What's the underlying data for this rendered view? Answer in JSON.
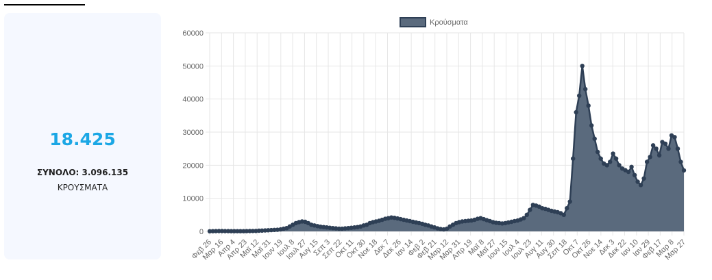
{
  "summary": {
    "value": "18.425",
    "total": "ΣΥΝΟΛΟ: 3.096.135",
    "caption": "ΚΡΟΥΣΜΑΤΑ"
  },
  "colors": {
    "line": "#2e3f55",
    "fill": "#5a6a7d",
    "accent": "#1ba7e5",
    "card": "#f5f8ff"
  },
  "chart_data": {
    "type": "area",
    "title": "",
    "xlabel": "",
    "ylabel": "",
    "ylim": [
      0,
      60000
    ],
    "yticks": [
      0,
      10000,
      20000,
      30000,
      40000,
      50000,
      60000
    ],
    "grid": true,
    "legend_position": "top",
    "x_tick_labels": [
      "Φεβ 26",
      "Μαρ 16",
      "Απρ 4",
      "Απρ 23",
      "Μαϊ 12",
      "Μαϊ 31",
      "Ιουν 19",
      "Ιουλ 8",
      "Ιουλ 27",
      "Αυγ 15",
      "Σεπ 3",
      "Σεπ 22",
      "Οκτ 11",
      "Οκτ 30",
      "Νοε 18",
      "Δεκ 7",
      "Δεκ 26",
      "Ιαν 14",
      "Φεβ 2",
      "Φεβ 21",
      "Μαρ 12",
      "Μαρ 31",
      "Απρ 19",
      "Μαϊ 8",
      "Μαϊ 27",
      "Ιουν 15",
      "Ιουλ 4",
      "Ιουλ 23",
      "Αυγ 11",
      "Αυγ 30",
      "Σεπ 18",
      "Οκτ 7",
      "Οκτ 26",
      "Νοε 14",
      "Δεκ 3",
      "Δεκ 22",
      "Ιαν 10",
      "Ιαν 29",
      "Φεβ 17",
      "Μαρ 8",
      "Μαρ 27"
    ],
    "series": [
      {
        "name": "Κρούσματα",
        "values": [
          50,
          60,
          80,
          100,
          100,
          90,
          80,
          70,
          70,
          60,
          60,
          70,
          80,
          100,
          120,
          150,
          200,
          250,
          300,
          350,
          400,
          450,
          500,
          600,
          800,
          1000,
          1500,
          2000,
          2500,
          2800,
          3000,
          2900,
          2500,
          2000,
          1800,
          1600,
          1400,
          1300,
          1200,
          1100,
          1000,
          900,
          800,
          800,
          900,
          1000,
          1100,
          1200,
          1300,
          1500,
          1800,
          2000,
          2500,
          2800,
          3000,
          3200,
          3500,
          3800,
          4000,
          4200,
          4100,
          3900,
          3700,
          3500,
          3300,
          3100,
          2900,
          2700,
          2500,
          2300,
          2000,
          1800,
          1500,
          1200,
          900,
          700,
          600,
          800,
          1500,
          2000,
          2500,
          2800,
          3000,
          3100,
          3200,
          3300,
          3500,
          3800,
          4000,
          3700,
          3400,
          3100,
          2800,
          2600,
          2500,
          2400,
          2500,
          2700,
          2900,
          3100,
          3300,
          3600,
          4000,
          5000,
          6500,
          8000,
          7800,
          7500,
          7000,
          6800,
          6500,
          6200,
          6000,
          5800,
          5500,
          5000,
          7000,
          9000,
          22000,
          36000,
          41000,
          50000,
          43000,
          38000,
          32000,
          28000,
          24000,
          22000,
          20500,
          20000,
          21000,
          23500,
          22000,
          20000,
          19000,
          18500,
          18000,
          19500,
          17000,
          15000,
          14000,
          16000,
          21000,
          22500,
          26000,
          25000,
          23000,
          27000,
          26500,
          25000,
          29000,
          28500,
          25000,
          21000,
          18425
        ],
        "lows": [
          50,
          60,
          80,
          100,
          100,
          90,
          80,
          70,
          70,
          60,
          60,
          70,
          80,
          100,
          120,
          150,
          200,
          250,
          300,
          350,
          400,
          450,
          500,
          600,
          800,
          1000,
          1500,
          2000,
          2500,
          2800,
          3000,
          2900,
          2500,
          2000,
          1800,
          1600,
          1400,
          1300,
          1200,
          1100,
          1000,
          900,
          800,
          800,
          900,
          1000,
          1100,
          1200,
          1300,
          1500,
          1800,
          2000,
          2500,
          2800,
          3000,
          3200,
          3500,
          3800,
          4000,
          4200,
          4100,
          3900,
          3700,
          3500,
          3300,
          3100,
          2900,
          2700,
          2500,
          2300,
          2000,
          1800,
          1500,
          1200,
          900,
          700,
          600,
          800,
          1500,
          2000,
          2500,
          2800,
          3000,
          3100,
          3200,
          3300,
          3500,
          3800,
          4000,
          3700,
          3400,
          3100,
          2800,
          2600,
          2500,
          2400,
          2500,
          2700,
          2900,
          3100,
          3300,
          3600,
          4000,
          5000,
          6500,
          8000,
          7800,
          7500,
          7000,
          6800,
          6500,
          6200,
          6000,
          5800,
          5500,
          5000,
          7000,
          9000,
          22000,
          36000,
          41000,
          50000,
          43000,
          38000,
          32000,
          28000,
          24000,
          22000,
          20500,
          20000,
          21000,
          23500,
          22000,
          20000,
          19000,
          18500,
          18000,
          19500,
          17000,
          15000,
          14000,
          16000,
          21000,
          22500,
          26000,
          25000,
          23000,
          27000,
          26500,
          25000,
          29000,
          28500,
          25000,
          21000,
          18425
        ]
      }
    ]
  }
}
